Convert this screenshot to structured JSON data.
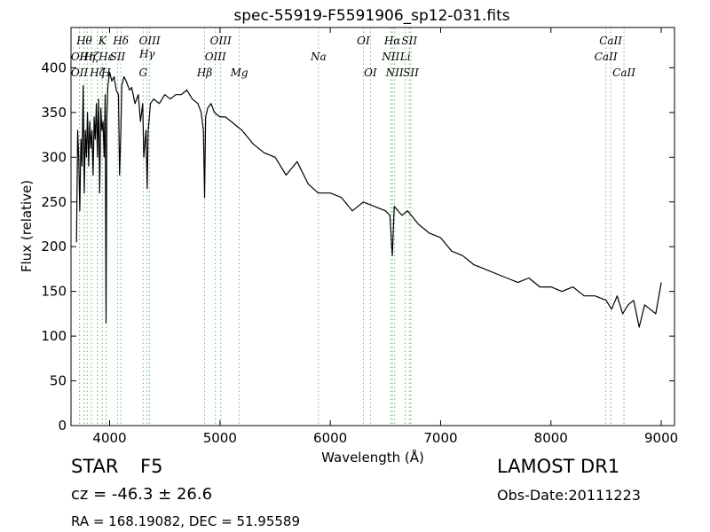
{
  "chart_data": {
    "type": "line",
    "title": "spec-55919-F5591906_sp12-031.fits",
    "xlabel": "Wavelength (Å)",
    "ylabel": "Flux (relative)",
    "xlim": [
      3650,
      9120
    ],
    "ylim": [
      0,
      445
    ],
    "xticks": [
      4000,
      5000,
      6000,
      7000,
      8000,
      9000
    ],
    "yticks": [
      0,
      50,
      100,
      150,
      200,
      250,
      300,
      350,
      400
    ],
    "grid": false,
    "series": [
      {
        "color": "#000000",
        "x": [
          3700,
          3710,
          3720,
          3730,
          3740,
          3750,
          3760,
          3770,
          3780,
          3790,
          3800,
          3810,
          3820,
          3830,
          3840,
          3850,
          3860,
          3870,
          3880,
          3890,
          3900,
          3910,
          3920,
          3930,
          3940,
          3950,
          3960,
          3968,
          3975,
          3985,
          4000,
          4020,
          4040,
          4060,
          4080,
          4090,
          4102,
          4110,
          4130,
          4150,
          4180,
          4200,
          4230,
          4260,
          4280,
          4300,
          4310,
          4330,
          4340,
          4350,
          4370,
          4400,
          4450,
          4500,
          4550,
          4600,
          4650,
          4700,
          4750,
          4800,
          4830,
          4850,
          4861,
          4870,
          4890,
          4920,
          4950,
          5000,
          5050,
          5100,
          5150,
          5200,
          5300,
          5400,
          5500,
          5600,
          5700,
          5800,
          5890,
          6000,
          6100,
          6200,
          6300,
          6400,
          6500,
          6540,
          6563,
          6580,
          6650,
          6700,
          6800,
          6900,
          7000,
          7100,
          7200,
          7300,
          7400,
          7500,
          7600,
          7700,
          7800,
          7900,
          8000,
          8100,
          8200,
          8300,
          8400,
          8500,
          8550,
          8600,
          8650,
          8700,
          8750,
          8800,
          8850,
          8900,
          8950,
          9000
        ],
        "y": [
          205,
          330,
          300,
          240,
          320,
          290,
          380,
          260,
          330,
          300,
          350,
          290,
          340,
          310,
          330,
          280,
          345,
          320,
          360,
          300,
          365,
          260,
          355,
          330,
          340,
          300,
          370,
          115,
          345,
          380,
          395,
          385,
          390,
          375,
          370,
          280,
          330,
          380,
          390,
          385,
          375,
          378,
          360,
          370,
          340,
          360,
          300,
          330,
          265,
          330,
          360,
          365,
          360,
          370,
          365,
          370,
          370,
          375,
          365,
          360,
          350,
          330,
          255,
          345,
          355,
          360,
          350,
          345,
          345,
          340,
          335,
          330,
          315,
          305,
          300,
          280,
          295,
          270,
          260,
          260,
          255,
          240,
          250,
          245,
          240,
          235,
          190,
          245,
          235,
          240,
          225,
          215,
          210,
          195,
          190,
          180,
          175,
          170,
          165,
          160,
          165,
          155,
          155,
          150,
          155,
          145,
          145,
          140,
          130,
          145,
          125,
          135,
          140,
          110,
          135,
          130,
          125,
          160
        ]
      }
    ],
    "line_labels": [
      {
        "x": 3727,
        "label": "OII",
        "row": "upper"
      },
      {
        "x": 3727,
        "label": "OII",
        "row": "lower"
      },
      {
        "x": 3770,
        "label": "Hθ",
        "row": "top"
      },
      {
        "x": 3797,
        "label": "Hη",
        "row": "upper"
      },
      {
        "x": 3835,
        "label": "Hζ",
        "row": "upper"
      },
      {
        "x": 3889,
        "label": "Hζ",
        "row": "lower"
      },
      {
        "x": 3934,
        "label": "K",
        "row": "top"
      },
      {
        "x": 3968,
        "label": "Hε",
        "row": "upper"
      },
      {
        "x": 3968,
        "label": "H",
        "row": "lower"
      },
      {
        "x": 4072,
        "label": "SII",
        "row": "upper"
      },
      {
        "x": 4102,
        "label": "Hδ",
        "row": "top"
      },
      {
        "x": 4304,
        "label": "G",
        "row": "lower"
      },
      {
        "x": 4340,
        "label": "Hγ",
        "row": "mid"
      },
      {
        "x": 4363,
        "label": "OIII",
        "row": "top"
      },
      {
        "x": 4861,
        "label": "Hβ",
        "row": "lower"
      },
      {
        "x": 4959,
        "label": "OIII",
        "row": "upper"
      },
      {
        "x": 5007,
        "label": "OIII",
        "row": "top"
      },
      {
        "x": 5175,
        "label": "Mg",
        "row": "lower"
      },
      {
        "x": 5893,
        "label": "Na",
        "row": "upper"
      },
      {
        "x": 6300,
        "label": "OI",
        "row": "top"
      },
      {
        "x": 6364,
        "label": "OI",
        "row": "lower"
      },
      {
        "x": 6548,
        "label": "NII",
        "row": "upper"
      },
      {
        "x": 6563,
        "label": "Hα",
        "row": "top"
      },
      {
        "x": 6583,
        "label": "NII",
        "row": "lower"
      },
      {
        "x": 6680,
        "label": "Li",
        "row": "upper"
      },
      {
        "x": 6717,
        "label": "SII",
        "row": "top"
      },
      {
        "x": 6731,
        "label": "SII",
        "row": "lower"
      },
      {
        "x": 8498,
        "label": "CaII",
        "row": "upper"
      },
      {
        "x": 8542,
        "label": "CaII",
        "row": "top"
      },
      {
        "x": 8662,
        "label": "CaII",
        "row": "lower"
      }
    ]
  },
  "info": {
    "object_class": "STAR",
    "subclass": "F5",
    "survey": "LAMOST DR1",
    "redshift_text": "cz = -46.3 ± 26.6",
    "obs_date": "Obs-Date:20111223",
    "coords": "RA = 168.19082, DEC = 51.95589"
  },
  "colors": {
    "spectrum": "#000000",
    "line_markers": "#66bb66",
    "axes": "#000000"
  }
}
